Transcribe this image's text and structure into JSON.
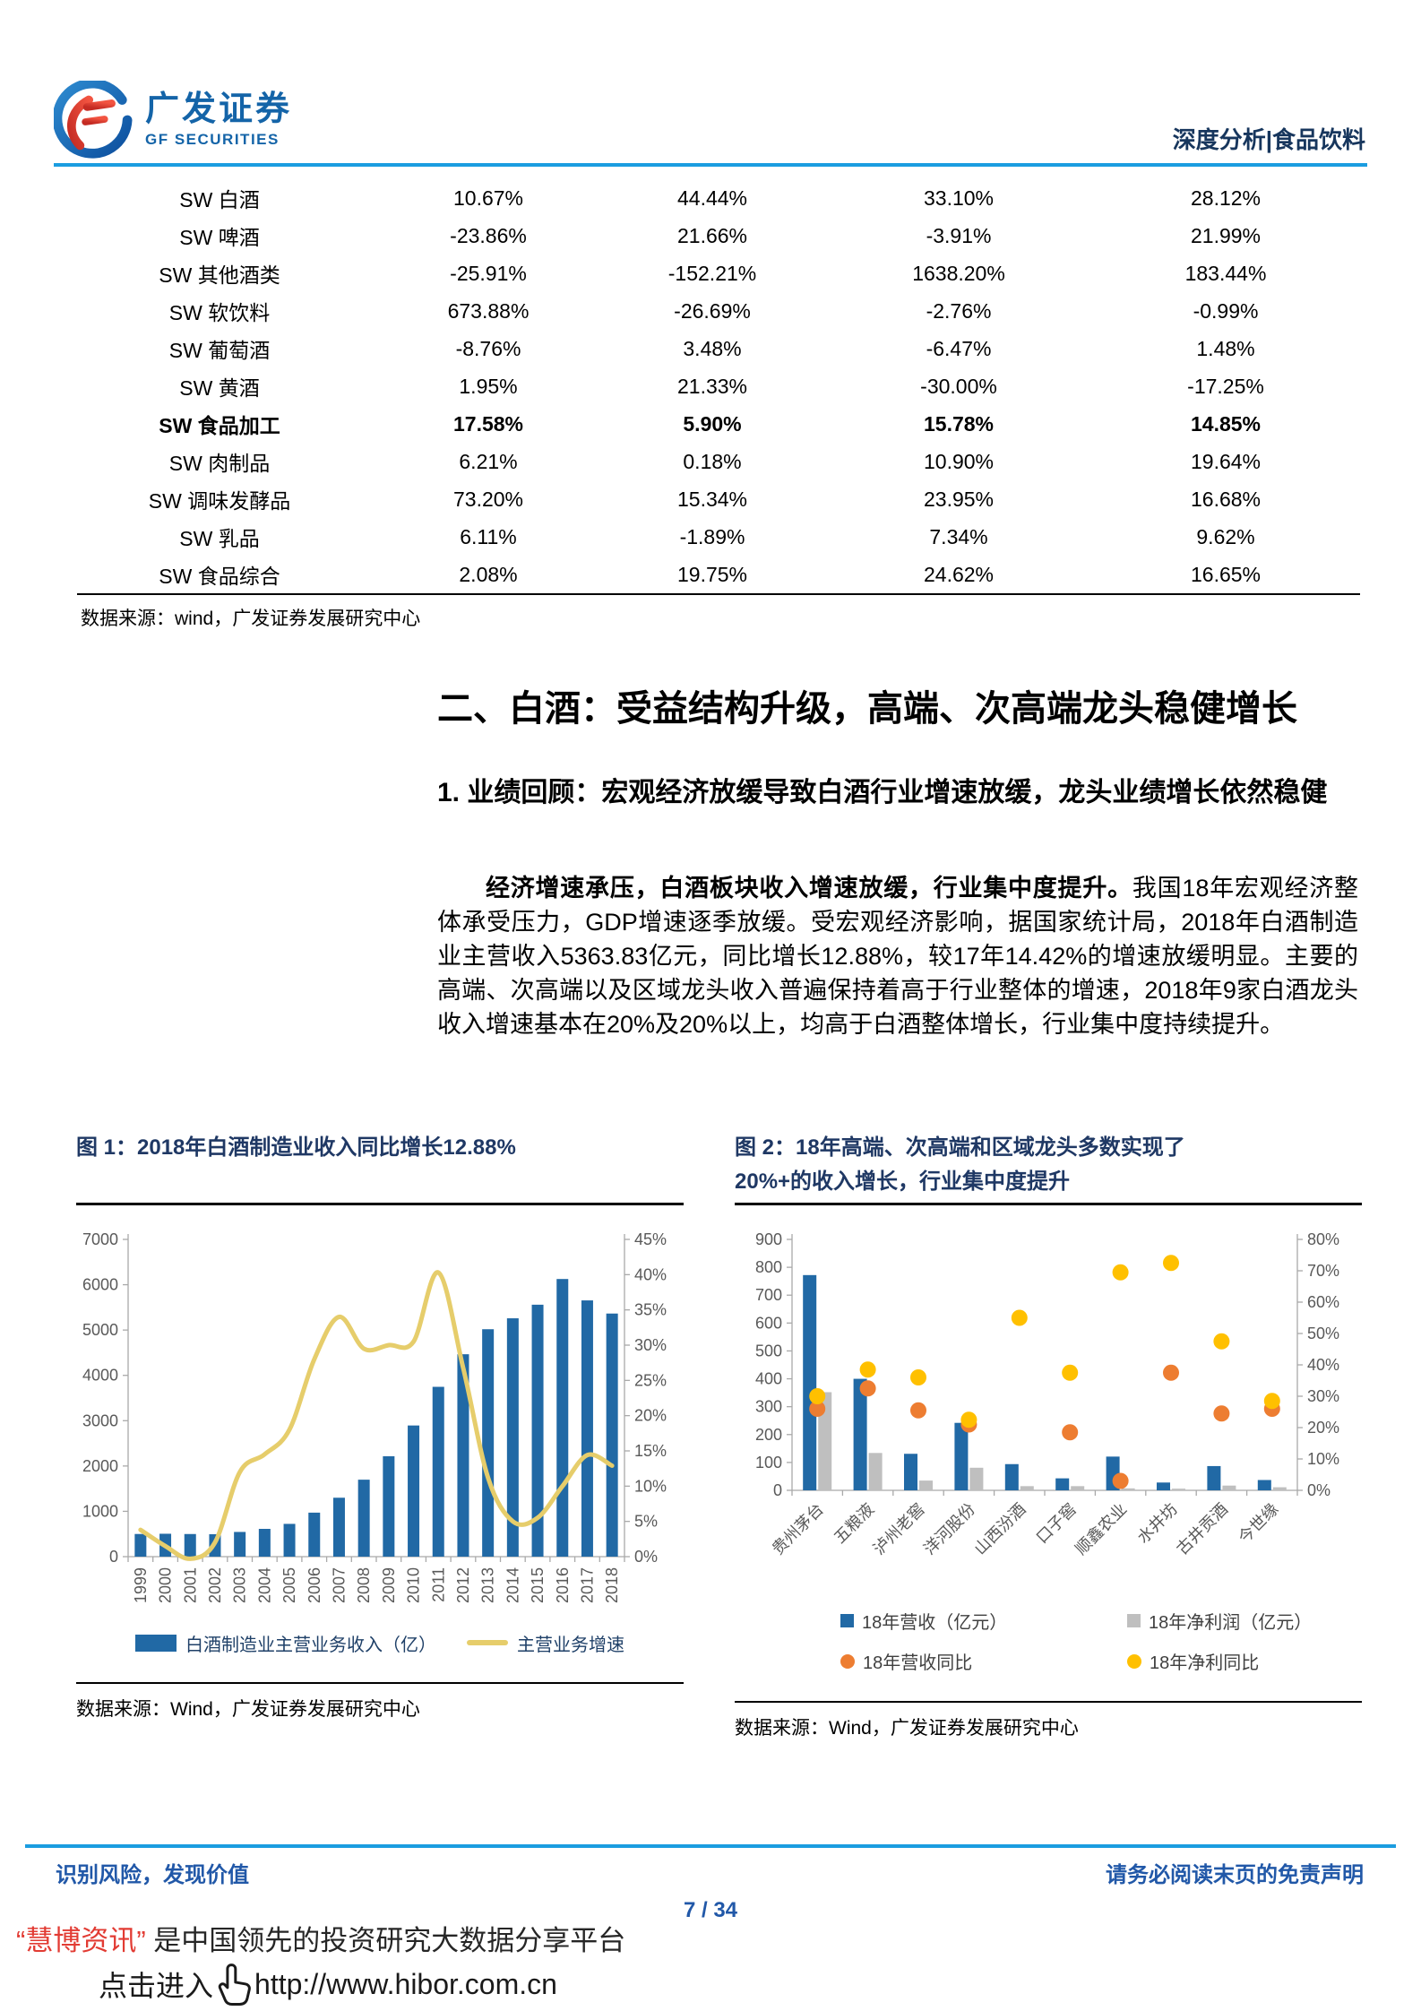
{
  "header": {
    "logo_cn": "广发证券",
    "logo_en": "GF SECURITIES",
    "right": "深度分析|食品饮料"
  },
  "table": {
    "rows": [
      {
        "label": "SW 白酒",
        "bold": false,
        "values": [
          "10.67%",
          "44.44%",
          "33.10%",
          "28.12%"
        ]
      },
      {
        "label": "SW 啤酒",
        "bold": false,
        "values": [
          "-23.86%",
          "21.66%",
          "-3.91%",
          "21.99%"
        ]
      },
      {
        "label": "SW 其他酒类",
        "bold": false,
        "values": [
          "-25.91%",
          "-152.21%",
          "1638.20%",
          "183.44%"
        ]
      },
      {
        "label": "SW 软饮料",
        "bold": false,
        "values": [
          "673.88%",
          "-26.69%",
          "-2.76%",
          "-0.99%"
        ]
      },
      {
        "label": "SW 葡萄酒",
        "bold": false,
        "values": [
          "-8.76%",
          "3.48%",
          "-6.47%",
          "1.48%"
        ]
      },
      {
        "label": "SW 黄酒",
        "bold": false,
        "values": [
          "1.95%",
          "21.33%",
          "-30.00%",
          "-17.25%"
        ]
      },
      {
        "label": "SW 食品加工",
        "bold": true,
        "values": [
          "17.58%",
          "5.90%",
          "15.78%",
          "14.85%"
        ]
      },
      {
        "label": "SW 肉制品",
        "bold": false,
        "values": [
          "6.21%",
          "0.18%",
          "10.90%",
          "19.64%"
        ]
      },
      {
        "label": "SW 调味发酵品",
        "bold": false,
        "values": [
          "73.20%",
          "15.34%",
          "23.95%",
          "16.68%"
        ]
      },
      {
        "label": "SW 乳品",
        "bold": false,
        "values": [
          "6.11%",
          "-1.89%",
          "7.34%",
          "9.62%"
        ]
      },
      {
        "label": "SW 食品综合",
        "bold": false,
        "values": [
          "2.08%",
          "19.75%",
          "24.62%",
          "16.65%"
        ]
      }
    ],
    "source": "数据来源：wind，广发证券发展研究中心"
  },
  "section": {
    "title": "二、白酒：受益结构升级，高端、次高端龙头稳健增长",
    "subtitle": "1. 业绩回顾：宏观经济放缓导致白酒行业增速放缓，龙头业绩增长依然稳健"
  },
  "paragraph": {
    "lead": "经济增速承压，白酒板块收入增速放缓，行业集中度提升。",
    "body": "我国18年宏观经济整体承受压力，GDP增速逐季放缓。受宏观经济影响，据国家统计局，2018年白酒制造业主营收入5363.83亿元，同比增长12.88%，较17年14.42%的增速放缓明显。主要的高端、次高端以及区域龙头收入普遍保持着高于行业整体的增速，2018年9家白酒龙头收入增速基本在20%及20%以上，均高于白酒整体增长，行业集中度持续提升。"
  },
  "figures": [
    {
      "title_lines": [
        "图 1：2018年白酒制造业收入同比增长12.88%"
      ],
      "source": "数据来源：Wind，广发证券发展研究中心",
      "chart_data": {
        "type": "bar+line",
        "categories": [
          "1999",
          "2000",
          "2001",
          "2002",
          "2003",
          "2004",
          "2005",
          "2006",
          "2007",
          "2008",
          "2009",
          "2010",
          "2011",
          "2012",
          "2013",
          "2014",
          "2015",
          "2016",
          "2017",
          "2018"
        ],
        "series": [
          {
            "name": "白酒制造业主营业务收入（亿）",
            "type": "bar",
            "axis": "left",
            "color": "#2169A5",
            "values": [
              500,
              505,
              499,
              495,
              545,
              613,
              723,
              971,
              1300,
              1698,
              2215,
              2894,
              3747,
              4466,
              5018,
              5259,
              5559,
              6126,
              5654,
              5364
            ]
          },
          {
            "name": "主营业务增速",
            "type": "line",
            "axis": "right",
            "color": "#E6CD6B",
            "values": [
              3.8,
              1.5,
              -0.3,
              2.0,
              12.0,
              14.5,
              18.0,
              28.0,
              34.0,
              29.5,
              30.0,
              30.5,
              40.3,
              26.8,
              11.2,
              5.0,
              5.5,
              10.0,
              14.4,
              12.9
            ]
          }
        ],
        "left_axis": {
          "min": 0,
          "max": 7000,
          "step": 1000
        },
        "right_axis": {
          "min": 0,
          "max": 45,
          "step": 5,
          "format": "percent"
        },
        "grid": false,
        "legend_position": "bottom"
      }
    },
    {
      "title_lines": [
        "图 2：18年高端、次高端和区域龙头多数实现了",
        "20%+的收入增长，行业集中度提升"
      ],
      "source": "数据来源：Wind，广发证券发展研究中心",
      "chart_data": {
        "type": "bar+scatter",
        "categories": [
          "贵州茅台",
          "五粮液",
          "泸州老窖",
          "洋河股份",
          "山西汾酒",
          "口子窖",
          "顺鑫农业",
          "水井坊",
          "古井贡酒",
          "今世缘"
        ],
        "series": [
          {
            "name": "18年营收（亿元）",
            "type": "bar",
            "axis": "left",
            "color": "#2169A5",
            "values": [
              772,
              400,
              131,
              242,
              94,
              43,
              121,
              28,
              87,
              37
            ]
          },
          {
            "name": "18年净利润（亿元）",
            "type": "bar",
            "axis": "left",
            "color": "#BFBFBF",
            "values": [
              352,
              134,
              35,
              81,
              15,
              15,
              7,
              6,
              17,
              11
            ]
          },
          {
            "name": "18年营收同比",
            "type": "scatter",
            "axis": "right",
            "color": "#ED7D31",
            "values": [
              26,
              32.5,
              25.5,
              21,
              null,
              18.5,
              3,
              37.5,
              24.5,
              26
            ]
          },
          {
            "name": "18年净利同比",
            "type": "scatter",
            "axis": "right",
            "color": "#FFC000",
            "values": [
              30,
              38.5,
              36,
              22.5,
              55,
              37.5,
              69.5,
              72.5,
              47.5,
              28.5
            ]
          }
        ],
        "left_axis": {
          "min": 0,
          "max": 900,
          "step": 100
        },
        "right_axis": {
          "min": 0,
          "max": 80,
          "step": 10,
          "format": "percent"
        },
        "grid": false,
        "legend_position": "bottom"
      }
    }
  ],
  "footer": {
    "left": "识别风险，发现价值",
    "right": "请务必阅读末页的免责声明",
    "page": "7 / 34"
  },
  "watermark": {
    "brand": "“慧博资讯”",
    "tagline": " 是中国领先的投资研究大数据分享平台",
    "cta": "点击进入",
    "url": "http://www.hibor.com.cn"
  },
  "colors": {
    "brand_blue": "#1464A8",
    "rule_blue": "#1B9DE0",
    "header_navy": "#17365D",
    "fig_title_navy": "#1F3864",
    "bar_blue": "#2169A5",
    "line_yellow": "#E6CD6B",
    "orange_dot": "#ED7D31",
    "yellow_dot": "#FFC000",
    "gray_bar": "#BFBFBF",
    "footer_blue": "#2158A8",
    "watermark_red": "#E23B33"
  }
}
